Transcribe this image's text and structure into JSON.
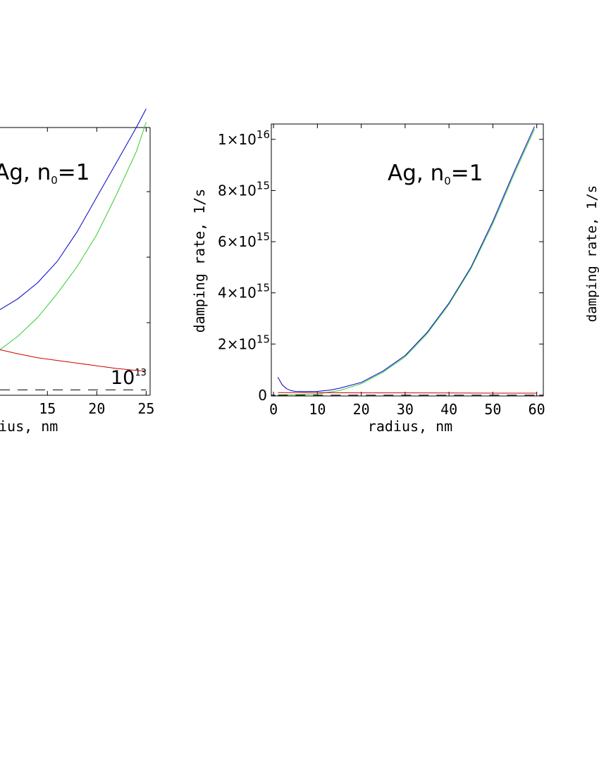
{
  "chart_data": [
    {
      "type": "line",
      "panel": "left (partially cropped)",
      "title": "",
      "annotation": {
        "base": "Ag, n",
        "sub": "0",
        "rest": "=1"
      },
      "xlabel": "ius,  nm",
      "ylabel": "",
      "xlim": [
        10.2,
        25.4
      ],
      "ylim": [
        0,
        1
      ],
      "xticks": [
        15,
        20,
        25
      ],
      "x_tick_labels": [
        "15",
        "20",
        "25"
      ],
      "inline_label": {
        "base": "10",
        "exp": "13"
      },
      "grid": false,
      "series": [
        {
          "color": "#0000cc",
          "x": [
            10.2,
            12,
            14,
            16,
            18,
            20,
            22,
            24,
            25
          ],
          "y": [
            0.32,
            0.36,
            0.42,
            0.5,
            0.61,
            0.74,
            0.87,
            1.0,
            1.07
          ]
        },
        {
          "color": "#33cc33",
          "x": [
            10.2,
            12,
            14,
            16,
            18,
            20,
            22,
            24,
            25
          ],
          "y": [
            0.17,
            0.22,
            0.29,
            0.38,
            0.48,
            0.6,
            0.75,
            0.91,
            1.02
          ]
        },
        {
          "color": "#cc0000",
          "x": [
            10.2,
            12,
            14,
            16,
            18,
            20,
            22,
            24,
            25
          ],
          "y": [
            0.17,
            0.155,
            0.14,
            0.13,
            0.12,
            0.11,
            0.1,
            0.093,
            0.09
          ]
        },
        {
          "color": "#000000",
          "dashed": true,
          "x": [
            10.2,
            25
          ],
          "y": [
            0.02,
            0.02
          ]
        }
      ]
    },
    {
      "type": "line",
      "panel": "center",
      "title": "",
      "annotation": {
        "base": "Ag, n",
        "sub": "0",
        "rest": "=1"
      },
      "xlabel": "radius,  nm",
      "ylabel": "damping rate,  1/s",
      "xlim": [
        -0.5,
        61.5
      ],
      "ylim": [
        -30000000000000.0,
        1.06e+16
      ],
      "xticks": [
        0,
        10,
        20,
        30,
        40,
        50,
        60
      ],
      "x_tick_labels": [
        "0",
        "10",
        "20",
        "30",
        "40",
        "50",
        "60"
      ],
      "yticks": [
        0,
        2000000000000000.0,
        4000000000000000.0,
        6000000000000000.0,
        8000000000000000.0,
        1e+16
      ],
      "y_tick_labels": [
        {
          "coef": "0",
          "exp": ""
        },
        {
          "coef": "2×10",
          "exp": "15"
        },
        {
          "coef": "4×10",
          "exp": "15"
        },
        {
          "coef": "6×10",
          "exp": "15"
        },
        {
          "coef": "8×10",
          "exp": "15"
        },
        {
          "coef": "1×10",
          "exp": "16"
        }
      ],
      "grid": false,
      "series": [
        {
          "color": "#0000cc",
          "x": [
            1,
            2,
            3,
            4,
            5,
            7,
            10,
            13,
            15,
            20,
            25,
            30,
            35,
            40,
            45,
            50,
            55,
            59.5
          ],
          "y": [
            700000000000000.0,
            400000000000000.0,
            250000000000000.0,
            180000000000000.0,
            150000000000000.0,
            140000000000000.0,
            150000000000000.0,
            200000000000000.0,
            270000000000000.0,
            500000000000000.0,
            950000000000000.0,
            1550000000000000.0,
            2450000000000000.0,
            3600000000000000.0,
            5000000000000000.0,
            6800000000000000.0,
            8800000000000000.0,
            1.05e+16
          ]
        },
        {
          "color": "#33cc33",
          "x": [
            1,
            5,
            10,
            15,
            20,
            25,
            30,
            35,
            40,
            45,
            50,
            55,
            59.5
          ],
          "y": [
            10000000000000.0,
            20000000000000.0,
            50000000000000.0,
            180000000000000.0,
            450000000000000.0,
            900000000000000.0,
            1500000000000000.0,
            2400000000000000.0,
            3550000000000000.0,
            4950000000000000.0,
            6700000000000000.0,
            8700000000000000.0,
            1.04e+16
          ]
        },
        {
          "color": "#cc0000",
          "x": [
            1,
            10,
            20,
            30,
            40,
            50,
            60
          ],
          "y": [
            100000000000000.0,
            100000000000000.0,
            90000000000000.0,
            90000000000000.0,
            85000000000000.0,
            80000000000000.0,
            80000000000000.0
          ]
        },
        {
          "color": "#000000",
          "dashed": true,
          "x": [
            1,
            60
          ],
          "y": [
            0,
            0
          ]
        }
      ]
    },
    {
      "type": "line",
      "panel": "right (cropped)",
      "ylabel": "damping rate, 1/s",
      "series": []
    }
  ]
}
